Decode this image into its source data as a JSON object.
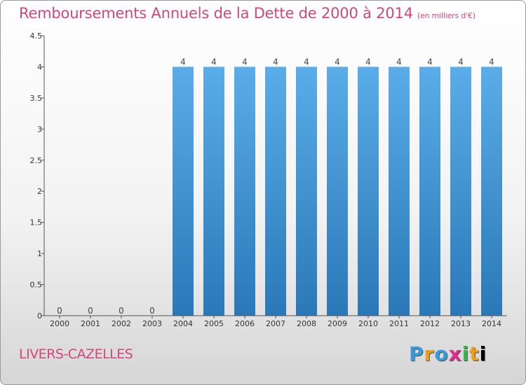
{
  "header": {
    "title": "Remboursements Annuels de la Dette de 2000 à 2014",
    "unit": "(en milliers d'€)"
  },
  "footer": {
    "commune": "LIVERS-CAZELLES",
    "logo": [
      "P",
      "r",
      "o",
      "x",
      "i",
      "t",
      "i"
    ]
  },
  "colors": {
    "title": "#d2477a",
    "bar_top": "#5aade8",
    "bar_bottom": "#2a78b8",
    "axis": "#555555"
  },
  "chart_data": {
    "type": "bar",
    "categories": [
      "2000",
      "2001",
      "2002",
      "2003",
      "2004",
      "2005",
      "2006",
      "2007",
      "2008",
      "2009",
      "2010",
      "2011",
      "2012",
      "2013",
      "2014"
    ],
    "values": [
      0,
      0,
      0,
      0,
      4,
      4,
      4,
      4,
      4,
      4,
      4,
      4,
      4,
      4,
      4
    ],
    "data_labels": [
      "0",
      "0",
      "0",
      "0",
      "4",
      "4",
      "4",
      "4",
      "4",
      "4",
      "4",
      "4",
      "4",
      "4",
      "4"
    ],
    "yticks": [
      0,
      0.5,
      1,
      1.5,
      2,
      2.5,
      3,
      3.5,
      4,
      4.5
    ],
    "ytick_labels": [
      "0",
      "0.5",
      "1",
      "1.5",
      "2",
      "2.5",
      "3",
      "3.5",
      "4",
      "4.5"
    ],
    "ylim": [
      0,
      4.5
    ],
    "grid": false
  }
}
